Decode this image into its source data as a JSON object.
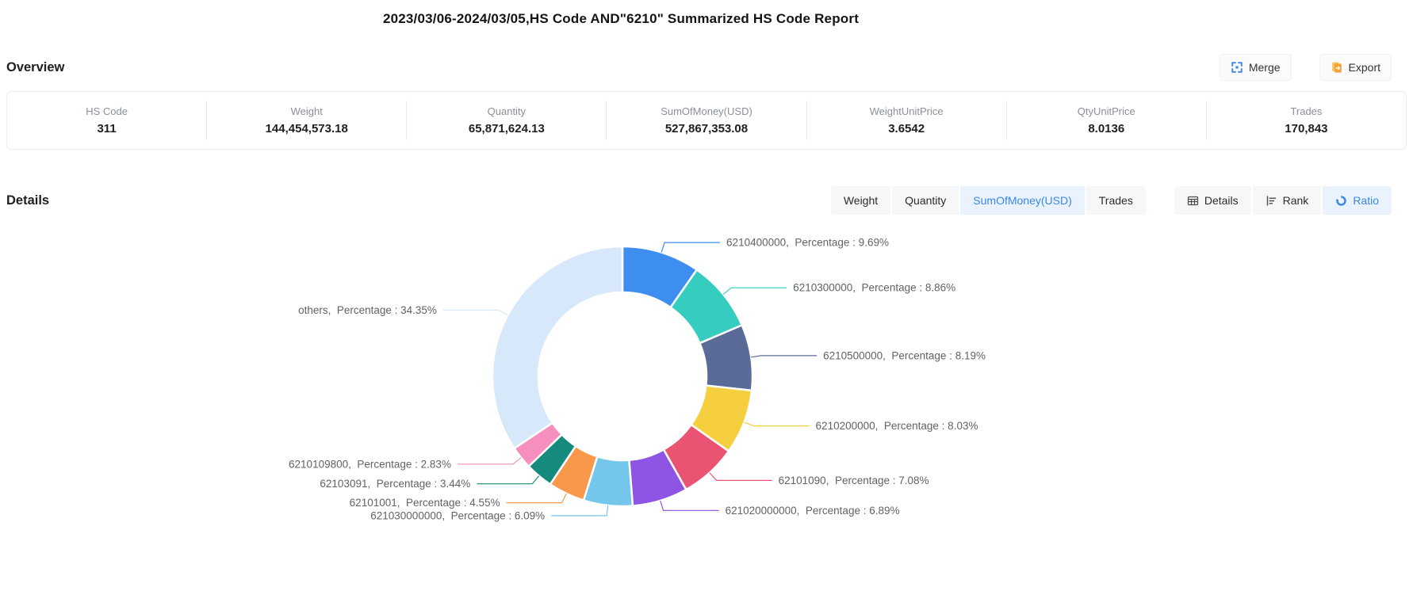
{
  "page": {
    "title": "2023/03/06-2024/03/05,HS Code AND\"6210\" Summarized HS Code Report"
  },
  "overview": {
    "heading": "Overview",
    "buttons": {
      "merge": "Merge",
      "merge_icon": "merge-icon",
      "export": "Export",
      "export_icon": "export-icon"
    },
    "stats": [
      {
        "label": "HS Code",
        "value": "311"
      },
      {
        "label": "Weight",
        "value": "144,454,573.18"
      },
      {
        "label": "Quantity",
        "value": "65,871,624.13"
      },
      {
        "label": "SumOfMoney(USD)",
        "value": "527,867,353.08"
      },
      {
        "label": "WeightUnitPrice",
        "value": "3.6542"
      },
      {
        "label": "QtyUnitPrice",
        "value": "8.0136"
      },
      {
        "label": "Trades",
        "value": "170,843"
      }
    ]
  },
  "details": {
    "heading": "Details",
    "metric_tabs": [
      {
        "label": "Weight",
        "selected": false
      },
      {
        "label": "Quantity",
        "selected": false
      },
      {
        "label": "SumOfMoney(USD)",
        "selected": true
      },
      {
        "label": "Trades",
        "selected": false
      }
    ],
    "view_tabs": [
      {
        "label": "Details",
        "icon": "table-icon",
        "selected": false
      },
      {
        "label": "Rank",
        "icon": "rank-icon",
        "selected": false
      },
      {
        "label": "Ratio",
        "icon": "ratio-icon",
        "selected": true
      }
    ]
  },
  "colors": {
    "accent_blue": "#3b87e9",
    "selected_tab_bg": "#e9f2fd",
    "export_orange": "#f5a43b",
    "chart_label_text": "#606266"
  },
  "chart_data": {
    "type": "pie",
    "donut": true,
    "start_angle_deg": -90,
    "clockwise": true,
    "label_separator": ",  Percentage : ",
    "percent_suffix": "%",
    "slices": [
      {
        "name": "6210400000",
        "value": 9.69,
        "color": "#3E8EF0"
      },
      {
        "name": "6210300000",
        "value": 8.86,
        "color": "#35CDC0"
      },
      {
        "name": "6210500000",
        "value": 8.19,
        "color": "#5A6B97"
      },
      {
        "name": "6210200000",
        "value": 8.03,
        "color": "#F6CF3F"
      },
      {
        "name": "62101090",
        "value": 7.08,
        "color": "#EA5371"
      },
      {
        "name": "621020000000",
        "value": 6.89,
        "color": "#8E55E5"
      },
      {
        "name": "621030000000",
        "value": 6.09,
        "color": "#74C7EA"
      },
      {
        "name": "62101001",
        "value": 4.55,
        "color": "#F9984A"
      },
      {
        "name": "62103091",
        "value": 3.44,
        "color": "#178A7E"
      },
      {
        "name": "6210109800",
        "value": 2.83,
        "color": "#F78FBE"
      },
      {
        "name": "others",
        "value": 34.35,
        "color": "#D8E8FB"
      }
    ]
  }
}
